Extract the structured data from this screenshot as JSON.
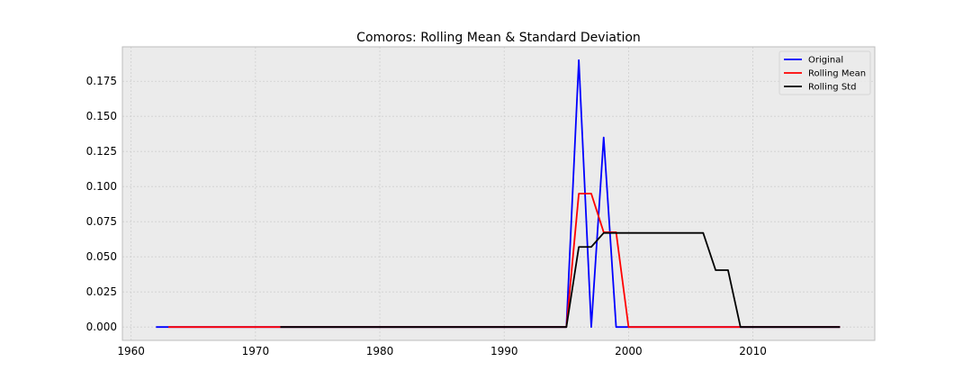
{
  "chart_data": {
    "type": "line",
    "title": "Comoros: Rolling Mean & Standard Deviation",
    "xlabel": "",
    "ylabel": "",
    "xlim": [
      1959.3,
      2019.8
    ],
    "ylim": [
      -0.0095,
      0.1995
    ],
    "x_ticks": [
      1960,
      1970,
      1980,
      1990,
      2000,
      2010
    ],
    "y_ticks": [
      0.0,
      0.025,
      0.05,
      0.075,
      0.1,
      0.125,
      0.15,
      0.175
    ],
    "x_tick_labels": [
      "1960",
      "1970",
      "1980",
      "1990",
      "2000",
      "2010"
    ],
    "y_tick_labels": [
      "0.000",
      "0.025",
      "0.050",
      "0.075",
      "0.100",
      "0.125",
      "0.150",
      "0.175"
    ],
    "grid": true,
    "legend_position": "top-right",
    "series": [
      {
        "name": "Original",
        "color": "#0000ff",
        "x": [
          1962,
          1995,
          1996,
          1997,
          1998,
          1999,
          2017
        ],
        "y": [
          0.0,
          0.0,
          0.19,
          0.0,
          0.135,
          0.0,
          0.0
        ]
      },
      {
        "name": "Rolling Mean",
        "color": "#ff0000",
        "x": [
          1963,
          1995,
          1996,
          1997,
          1998,
          1999,
          2000,
          2017
        ],
        "y": [
          0.0,
          0.0,
          0.095,
          0.095,
          0.0675,
          0.0675,
          0.0,
          0.0
        ]
      },
      {
        "name": "Rolling Std",
        "color": "#000000",
        "x": [
          1972,
          1995,
          1996,
          1997,
          1998,
          2006,
          2007,
          2008,
          2009,
          2017
        ],
        "y": [
          0.0,
          0.0,
          0.057,
          0.057,
          0.067,
          0.067,
          0.0405,
          0.0405,
          0.0,
          0.0
        ]
      }
    ]
  },
  "colors": {
    "plot_background": "#ebebeb",
    "grid": "#cfcfcf",
    "axes_edge": "#bcbcbc"
  }
}
